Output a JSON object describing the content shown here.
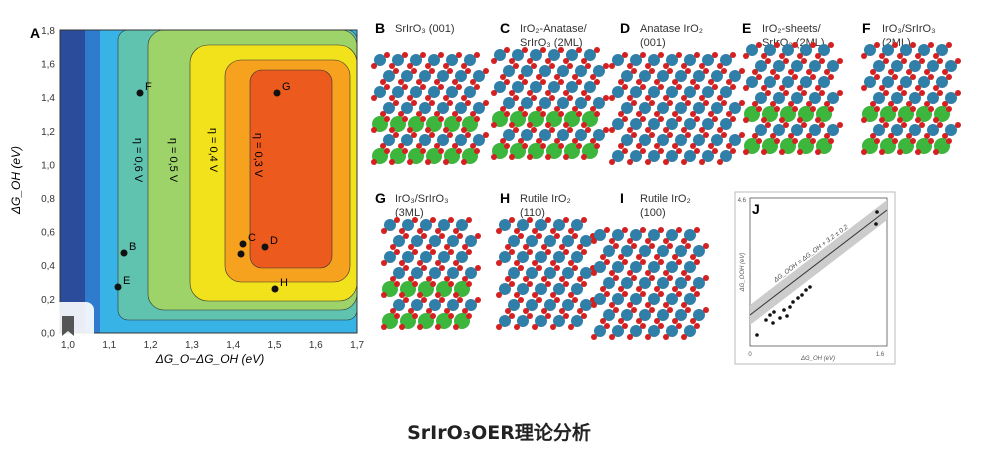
{
  "panel_a": {
    "label": "A",
    "xlabel": "ΔG_O−ΔG_OH (eV)",
    "ylabel": "ΔG_OH (eV)",
    "xticks": [
      "1,0",
      "1,1",
      "1,2",
      "1,3",
      "1,4",
      "1,5",
      "1,6",
      "1,7"
    ],
    "yticks": [
      "1,8",
      "1,6",
      "1,4",
      "1,2",
      "1,0",
      "0,8",
      "0,6",
      "0,4",
      "0,2",
      "0,0"
    ],
    "contours": [
      "η = 0,6 V",
      "η = 0,5 V",
      "η = 0,4 V",
      "η = 0,3 V"
    ],
    "points": [
      "F",
      "G",
      "C",
      "D",
      "B",
      "E",
      "H"
    ]
  },
  "panels": [
    {
      "label": "B",
      "title": [
        "SrIrO₃ (001)"
      ]
    },
    {
      "label": "C",
      "title": [
        "IrO₂-Anatase/",
        "SrIrO₃ (2ML)"
      ]
    },
    {
      "label": "D",
      "title": [
        "Anatase IrO₂",
        "(001)"
      ]
    },
    {
      "label": "E",
      "title": [
        "IrO₂-sheets/",
        "SrIrO₃ (2ML)"
      ]
    },
    {
      "label": "F",
      "title": [
        "IrO₃/SrIrO₃",
        "(2ML)"
      ]
    },
    {
      "label": "G",
      "title": [
        "IrO₃/SrIrO₃",
        "(3ML)"
      ]
    },
    {
      "label": "H",
      "title": [
        "Rutile IrO₂",
        "(110)"
      ]
    },
    {
      "label": "I",
      "title": [
        "Rutile IrO₂",
        "(100)"
      ]
    }
  ],
  "panel_j": {
    "label": "J",
    "ymax": "4.6",
    "origin": "0",
    "xmax": "1.6",
    "xlabel": "ΔG_OH (eV)",
    "ylabel": "ΔG_OOH (eV)",
    "line": "ΔG_OOH = ΔG_OH + 3.2 ± 0.2"
  },
  "caption": "SrIrO₃OER理论分析"
}
